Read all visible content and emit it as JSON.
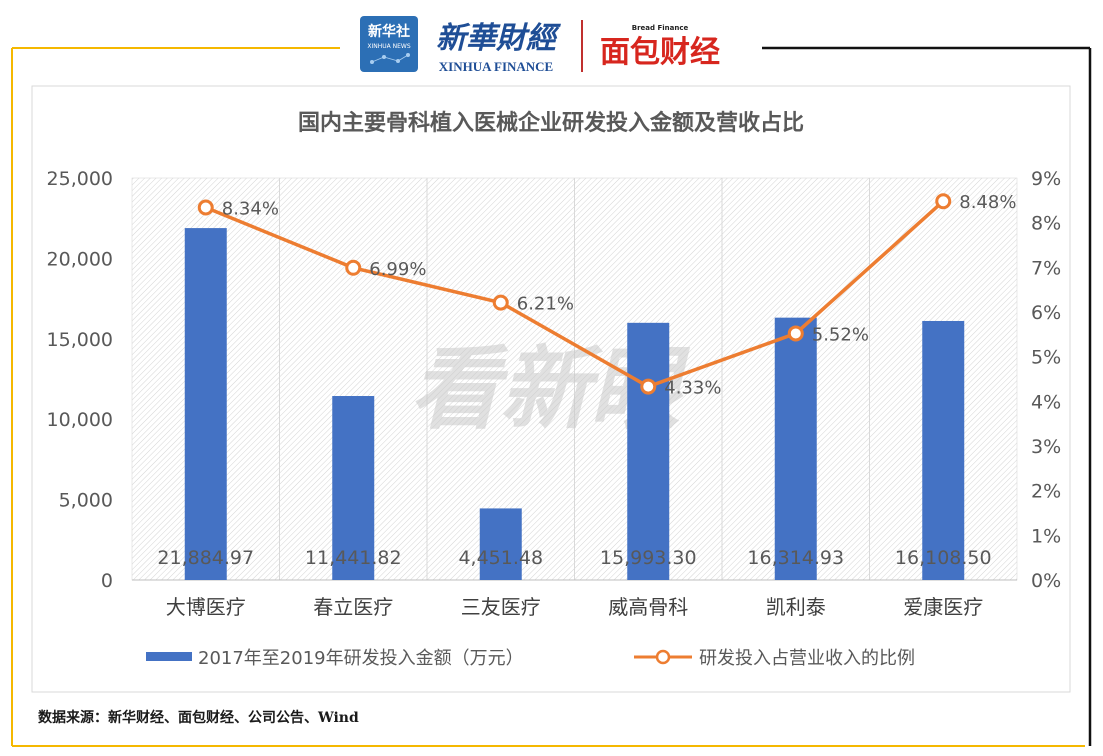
{
  "header": {
    "xinhua_news_logo": {
      "cn": "新华社",
      "en": "XINHUA NEWS"
    },
    "xinhua_finance_logo": {
      "cn": "新華財經",
      "en": "XINHUA FINANCE"
    },
    "bread_finance_logo": {
      "cn": "面包财经",
      "en": "Bread Finance"
    }
  },
  "colors": {
    "bar": "#4472C4",
    "line": "#ED7D31",
    "frame": "#F5B800",
    "text": "#595959"
  },
  "watermark": "看新眼",
  "source": "数据来源：新华财经、面包财经、公司公告、Wind",
  "chart_data": {
    "type": "bar",
    "title": "国内主要骨科植入医械企业研发投入金额及营收占比",
    "categories": [
      "大博医疗",
      "春立医疗",
      "三友医疗",
      "威高骨科",
      "凯利泰",
      "爱康医疗"
    ],
    "series": [
      {
        "name": "2017年至2019年研发投入金额（万元）",
        "type": "bar",
        "axis": "left",
        "values": [
          21884.97,
          11441.82,
          4451.48,
          15993.3,
          16314.93,
          16108.5
        ],
        "labels": [
          "21,884.97",
          "11,441.82",
          "4,451.48",
          "15,993.30",
          "16,314.93",
          "16,108.50"
        ]
      },
      {
        "name": "研发投入占营业收入的比例",
        "type": "line",
        "axis": "right",
        "values": [
          8.34,
          6.99,
          6.21,
          4.33,
          5.52,
          8.48
        ],
        "labels": [
          "8.34%",
          "6.99%",
          "6.21%",
          "4.33%",
          "5.52%",
          "8.48%"
        ]
      }
    ],
    "y_left": {
      "ylim": [
        0,
        25000
      ],
      "ticks": [
        "0",
        "5,000",
        "10,000",
        "15,000",
        "20,000",
        "25,000"
      ]
    },
    "y_right": {
      "ylim": [
        0,
        9
      ],
      "ticks": [
        "0%",
        "1%",
        "2%",
        "3%",
        "4%",
        "5%",
        "6%",
        "7%",
        "8%",
        "9%"
      ]
    },
    "legend_position": "bottom",
    "grid": true
  }
}
